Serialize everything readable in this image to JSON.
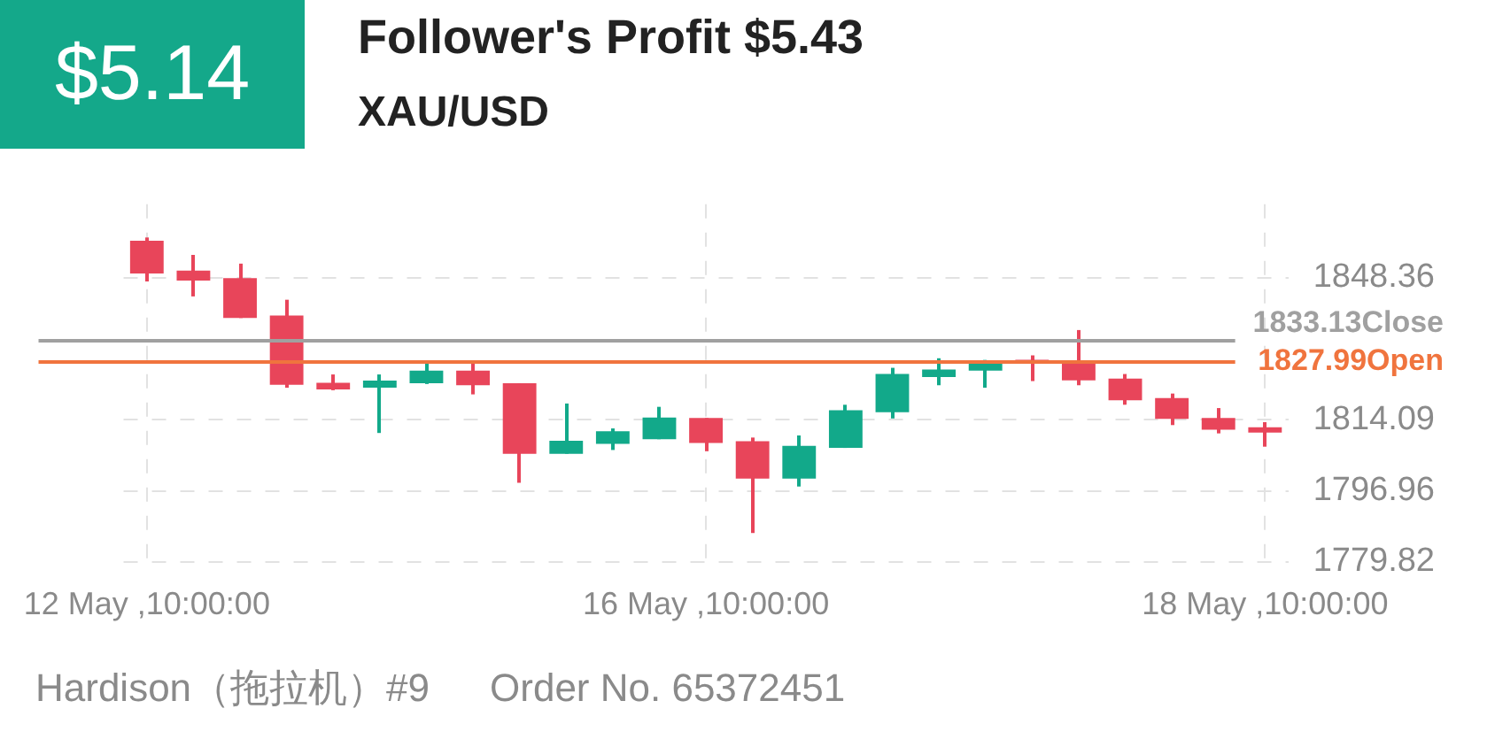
{
  "chart_data": {
    "type": "candlestick",
    "title": "Follower's Profit $5.43",
    "subtitle": "XAU/USD",
    "annotations": [
      "$5.14",
      "Hardison（拖拉机）#9",
      "Order No. 65372451"
    ],
    "categories": [
      "12 May ,10:00:00",
      null,
      null,
      null,
      null,
      null,
      null,
      null,
      null,
      null,
      null,
      null,
      "16 May ,10:00:00",
      null,
      null,
      null,
      null,
      null,
      null,
      null,
      null,
      null,
      null,
      null,
      "18 May ,10:00:00"
    ],
    "ohlc": [
      [
        1857.2,
        1858.0,
        1847.4,
        1849.3
      ],
      [
        1850.0,
        1853.8,
        1843.8,
        1847.6
      ],
      [
        1848.2,
        1851.7,
        1838.6,
        1838.6
      ],
      [
        1839.2,
        1843.0,
        1821.8,
        1822.5
      ],
      [
        1823.0,
        1825.0,
        1821.2,
        1821.4
      ],
      [
        1821.8,
        1825.0,
        1810.9,
        1823.5
      ],
      [
        1822.9,
        1828.0,
        1822.7,
        1825.9
      ],
      [
        1825.9,
        1828.3,
        1820.2,
        1822.4
      ],
      [
        1822.9,
        1822.9,
        1798.9,
        1805.9
      ],
      [
        1805.9,
        1818.0,
        1805.9,
        1809.0
      ],
      [
        1808.3,
        1812.0,
        1806.8,
        1811.3
      ],
      [
        1809.4,
        1817.2,
        1809.4,
        1814.6
      ],
      [
        1814.5,
        1814.5,
        1806.5,
        1808.5
      ],
      [
        1808.9,
        1809.8,
        1786.8,
        1799.9
      ],
      [
        1799.9,
        1810.3,
        1798.0,
        1807.8
      ],
      [
        1807.3,
        1817.7,
        1807.3,
        1816.4
      ],
      [
        1815.9,
        1826.6,
        1814.4,
        1825.1
      ],
      [
        1824.4,
        1828.9,
        1822.4,
        1826.2
      ],
      [
        1825.9,
        1828.5,
        1821.8,
        1828.3
      ],
      [
        1828.3,
        1829.6,
        1823.4,
        1827.7
      ],
      [
        1828.3,
        1835.7,
        1822.4,
        1823.6
      ],
      [
        1824.0,
        1825.1,
        1817.7,
        1818.8
      ],
      [
        1819.3,
        1820.4,
        1812.8,
        1814.3
      ],
      [
        1814.5,
        1816.9,
        1810.8,
        1811.7
      ],
      [
        1812.3,
        1813.5,
        1807.6,
        1811.0
      ]
    ],
    "colors": [
      "#e8455a",
      "#e8455a",
      "#e8455a",
      "#e8455a",
      "#e8455a",
      "#12a98a",
      "#12a98a",
      "#e8455a",
      "#e8455a",
      "#12a98a",
      "#12a98a",
      "#12a98a",
      "#e8455a",
      "#e8455a",
      "#12a98a",
      "#12a98a",
      "#12a98a",
      "#12a98a",
      "#12a98a",
      "#e8455a",
      "#e8455a",
      "#e8455a",
      "#e8455a",
      "#e8455a",
      "#e8455a"
    ],
    "ylim": [
      1779,
      1866
    ],
    "yticks": [
      1779.82,
      1796.96,
      1814.09,
      1848.36
    ],
    "ref_lines": [
      {
        "axis": "y",
        "value": 1833.13,
        "label": "1833.13Close",
        "color": "#a0a0a0"
      },
      {
        "axis": "y",
        "value": 1827.99,
        "label": "1827.99Open",
        "color": "#f0743e"
      }
    ],
    "grid": true,
    "legend": false
  }
}
